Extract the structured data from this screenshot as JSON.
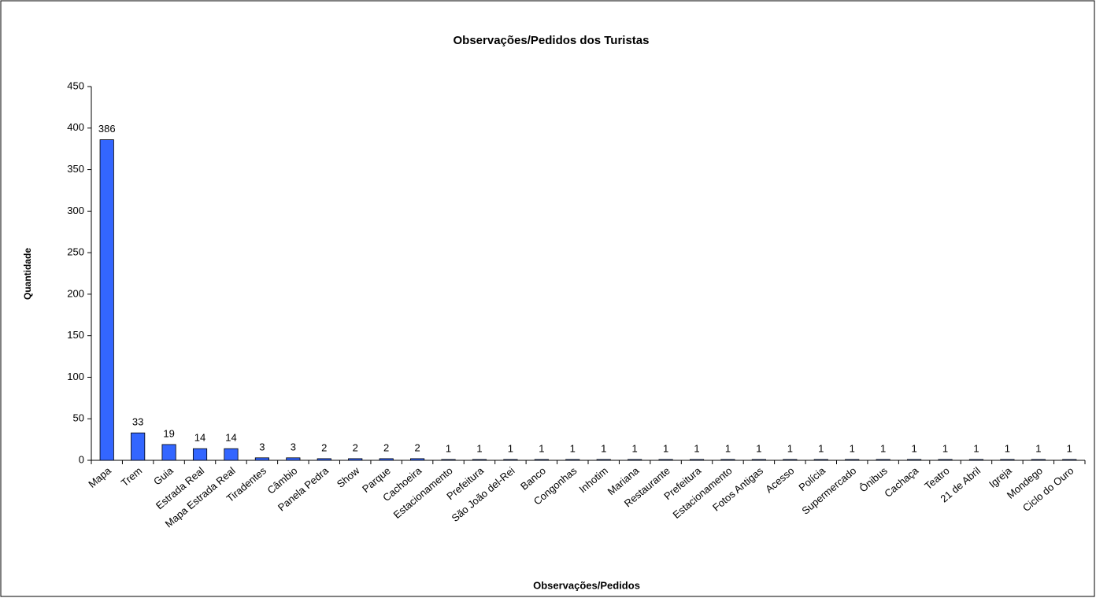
{
  "chart_data": {
    "type": "bar",
    "title": "Observações/Pedidos dos Turistas",
    "x_label": "Observações/Pedidos",
    "y_label": "Quantidade",
    "categories": [
      "Mapa",
      "Trem",
      "Guia",
      "Estrada Real",
      "Mapa Estrada Real",
      "Tiradentes",
      "Câmbio",
      "Panela Pedra",
      "Show",
      "Parque",
      "Cachoeira",
      "Estacionamento",
      "Prefeitura",
      "São João del-Rei",
      "Banco",
      "Congonhas",
      "Inhotim",
      "Mariana",
      "Restaurante",
      "Prefeitura",
      "Estacionamento",
      "Fotos Antigas",
      "Acesso",
      "Polícia",
      "Supermercado",
      "Ônibus",
      "Cachaça",
      "Teatro",
      "21 de Abril",
      "Igreja",
      "Mondego",
      "Ciclo do Ouro"
    ],
    "values": [
      386,
      33,
      19,
      14,
      14,
      3,
      3,
      2,
      2,
      2,
      2,
      1,
      1,
      1,
      1,
      1,
      1,
      1,
      1,
      1,
      1,
      1,
      1,
      1,
      1,
      1,
      1,
      1,
      1,
      1,
      1,
      1
    ],
    "color": "#3366ff",
    "ylim": [
      0,
      450
    ],
    "yticks": [
      0,
      50,
      100,
      150,
      200,
      250,
      300,
      350,
      400,
      450
    ],
    "data_labels": true
  }
}
